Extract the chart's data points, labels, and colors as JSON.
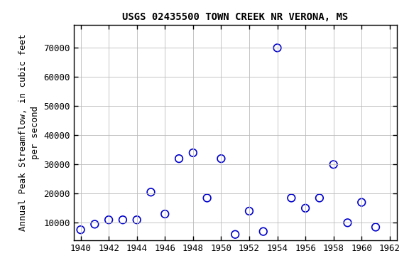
{
  "title": "USGS 02435500 TOWN CREEK NR VERONA, MS",
  "ylabel_line1": "Annual Peak Streamflow, in cubic feet",
  "ylabel_line2": "per second",
  "years": [
    1940,
    1941,
    1942,
    1943,
    1944,
    1945,
    1946,
    1947,
    1948,
    1949,
    1950,
    1951,
    1952,
    1953,
    1954,
    1955,
    1956,
    1957,
    1958,
    1959,
    1960,
    1961
  ],
  "flows": [
    7600,
    9500,
    11000,
    11000,
    11000,
    20500,
    13000,
    32000,
    34000,
    18500,
    32000,
    6000,
    14000,
    7000,
    70000,
    18500,
    15000,
    18500,
    30000,
    10000,
    17000,
    8500
  ],
  "xlim": [
    1939.5,
    1962.5
  ],
  "ylim": [
    4000,
    78000
  ],
  "yticks": [
    10000,
    20000,
    30000,
    40000,
    50000,
    60000,
    70000
  ],
  "xticks": [
    1940,
    1942,
    1944,
    1946,
    1948,
    1950,
    1952,
    1954,
    1956,
    1958,
    1960,
    1962
  ],
  "marker_color": "#0000CC",
  "marker_size": 7,
  "grid_color": "#bbbbbb",
  "bg_color": "#ffffff",
  "title_fontsize": 10,
  "label_fontsize": 9,
  "tick_fontsize": 9
}
